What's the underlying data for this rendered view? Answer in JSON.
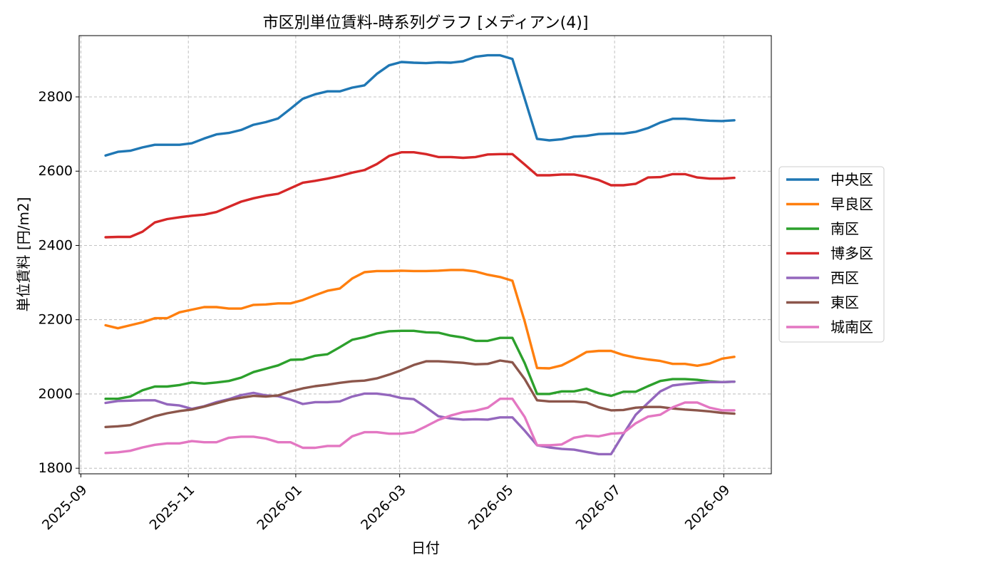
{
  "chart_data": {
    "type": "line",
    "title": "市区別単位賃料-時系列グラフ [メディアン(4)]",
    "xlabel": "日付",
    "ylabel": "単位賃料 [円/m2]",
    "x_start": "2025-09-15",
    "x_step_days": 7,
    "xlim": [
      "2025-08-31",
      "2026-09-28"
    ],
    "ylim": [
      1785,
      2965
    ],
    "x_ticks": [
      "2025-09",
      "2025-11",
      "2026-01",
      "2026-03",
      "2026-05",
      "2026-07",
      "2026-09"
    ],
    "y_ticks": [
      1800,
      2000,
      2200,
      2400,
      2600,
      2800
    ],
    "grid": true,
    "legend_position": "right",
    "series": [
      {
        "name": "中央区",
        "color": "#1f77b4",
        "values": [
          2642,
          2652,
          2655,
          2664,
          2671,
          2671,
          2671,
          2675,
          2688,
          2699,
          2703,
          2711,
          2725,
          2732,
          2742,
          2768,
          2795,
          2807,
          2815,
          2815,
          2825,
          2831,
          2862,
          2885,
          2894,
          2892,
          2891,
          2893,
          2892,
          2896,
          2908,
          2912,
          2912,
          2902,
          2795,
          2687,
          2683,
          2686,
          2693,
          2695,
          2700,
          2701,
          2701,
          2706,
          2716,
          2731,
          2741,
          2741,
          2738,
          2736,
          2735,
          2737
        ]
      },
      {
        "name": "早良区",
        "color": "#ff7f0e",
        "values": [
          2185,
          2177,
          2185,
          2193,
          2204,
          2204,
          2220,
          2227,
          2234,
          2234,
          2230,
          2230,
          2240,
          2241,
          2244,
          2244,
          2253,
          2266,
          2278,
          2284,
          2311,
          2328,
          2331,
          2331,
          2332,
          2331,
          2331,
          2332,
          2334,
          2334,
          2330,
          2321,
          2315,
          2305,
          2195,
          2070,
          2069,
          2077,
          2094,
          2113,
          2116,
          2116,
          2105,
          2098,
          2093,
          2089,
          2081,
          2081,
          2076,
          2082,
          2095,
          2100
        ]
      },
      {
        "name": "南区",
        "color": "#2ca02c",
        "values": [
          1987,
          1987,
          1993,
          2010,
          2020,
          2020,
          2024,
          2031,
          2028,
          2031,
          2035,
          2044,
          2059,
          2068,
          2077,
          2092,
          2093,
          2103,
          2107,
          2126,
          2146,
          2153,
          2163,
          2169,
          2170,
          2170,
          2166,
          2165,
          2157,
          2152,
          2143,
          2143,
          2151,
          2151,
          2083,
          2000,
          2000,
          2007,
          2007,
          2014,
          2002,
          1995,
          2006,
          2006,
          2021,
          2035,
          2040,
          2040,
          2038,
          2034,
          2032,
          2033
        ]
      },
      {
        "name": "博多区",
        "color": "#d62728",
        "values": [
          2422,
          2423,
          2423,
          2437,
          2462,
          2471,
          2476,
          2480,
          2483,
          2490,
          2504,
          2518,
          2527,
          2534,
          2539,
          2554,
          2569,
          2574,
          2580,
          2587,
          2596,
          2603,
          2619,
          2641,
          2651,
          2651,
          2646,
          2638,
          2638,
          2636,
          2638,
          2645,
          2646,
          2646,
          2618,
          2589,
          2589,
          2591,
          2591,
          2585,
          2576,
          2562,
          2562,
          2566,
          2583,
          2584,
          2592,
          2592,
          2583,
          2580,
          2580,
          2582
        ]
      },
      {
        "name": "西区",
        "color": "#9467bd",
        "values": [
          1976,
          1981,
          1982,
          1983,
          1983,
          1972,
          1969,
          1960,
          1967,
          1978,
          1986,
          1997,
          2003,
          1996,
          1994,
          1985,
          1973,
          1978,
          1978,
          1980,
          1993,
          2001,
          2001,
          1997,
          1989,
          1986,
          1964,
          1940,
          1934,
          1931,
          1932,
          1931,
          1937,
          1937,
          1901,
          1862,
          1856,
          1852,
          1850,
          1844,
          1838,
          1838,
          1892,
          1944,
          1976,
          2007,
          2023,
          2027,
          2030,
          2032,
          2032,
          2033
        ]
      },
      {
        "name": "東区",
        "color": "#8c564b",
        "values": [
          1911,
          1913,
          1916,
          1928,
          1940,
          1948,
          1954,
          1958,
          1966,
          1975,
          1984,
          1990,
          1995,
          1993,
          1996,
          2007,
          2015,
          2021,
          2025,
          2030,
          2034,
          2036,
          2042,
          2052,
          2064,
          2078,
          2088,
          2088,
          2086,
          2084,
          2080,
          2081,
          2090,
          2085,
          2040,
          1983,
          1980,
          1980,
          1980,
          1977,
          1964,
          1956,
          1957,
          1963,
          1965,
          1965,
          1961,
          1958,
          1956,
          1953,
          1949,
          1947
        ]
      },
      {
        "name": "城南区",
        "color": "#e377c2",
        "values": [
          1841,
          1843,
          1847,
          1856,
          1863,
          1867,
          1867,
          1873,
          1870,
          1870,
          1882,
          1885,
          1885,
          1880,
          1870,
          1870,
          1855,
          1855,
          1860,
          1860,
          1886,
          1897,
          1897,
          1893,
          1893,
          1897,
          1913,
          1930,
          1942,
          1951,
          1955,
          1963,
          1987,
          1987,
          1938,
          1862,
          1862,
          1864,
          1882,
          1888,
          1886,
          1893,
          1895,
          1921,
          1939,
          1944,
          1964,
          1977,
          1977,
          1963,
          1956,
          1956
        ]
      }
    ]
  }
}
